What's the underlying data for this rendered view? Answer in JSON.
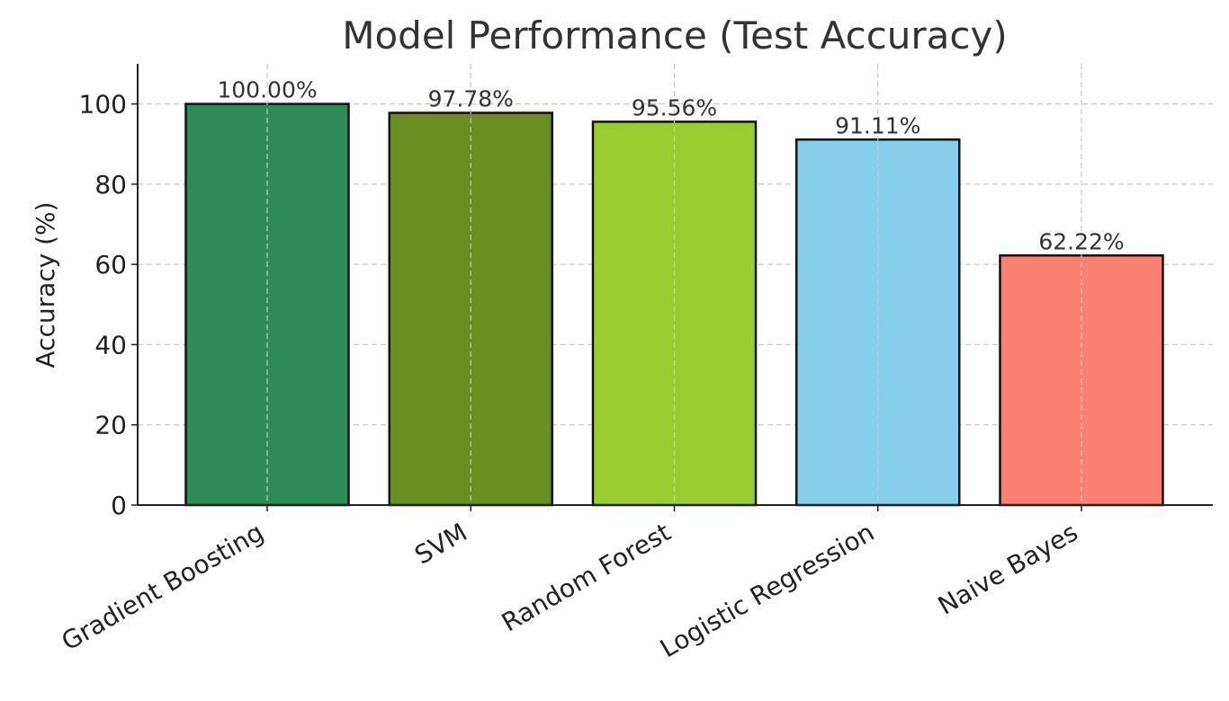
{
  "chart_data": {
    "type": "bar",
    "title": "Model Performance (Test Accuracy)",
    "xlabel": "",
    "ylabel": "Accuracy (%)",
    "ylim": [
      0,
      110
    ],
    "yticks": [
      0,
      20,
      40,
      60,
      80,
      100
    ],
    "grid": true,
    "categories": [
      "Gradient Boosting",
      "SVM",
      "Random Forest",
      "Logistic Regression",
      "Naive Bayes"
    ],
    "values": [
      100.0,
      97.78,
      95.56,
      91.11,
      62.22
    ],
    "value_labels": [
      "100.00%",
      "97.78%",
      "95.56%",
      "91.11%",
      "62.22%"
    ],
    "colors": [
      "#2e8b57",
      "#6b8e23",
      "#9acd32",
      "#87ceeb",
      "#fa8072"
    ]
  }
}
